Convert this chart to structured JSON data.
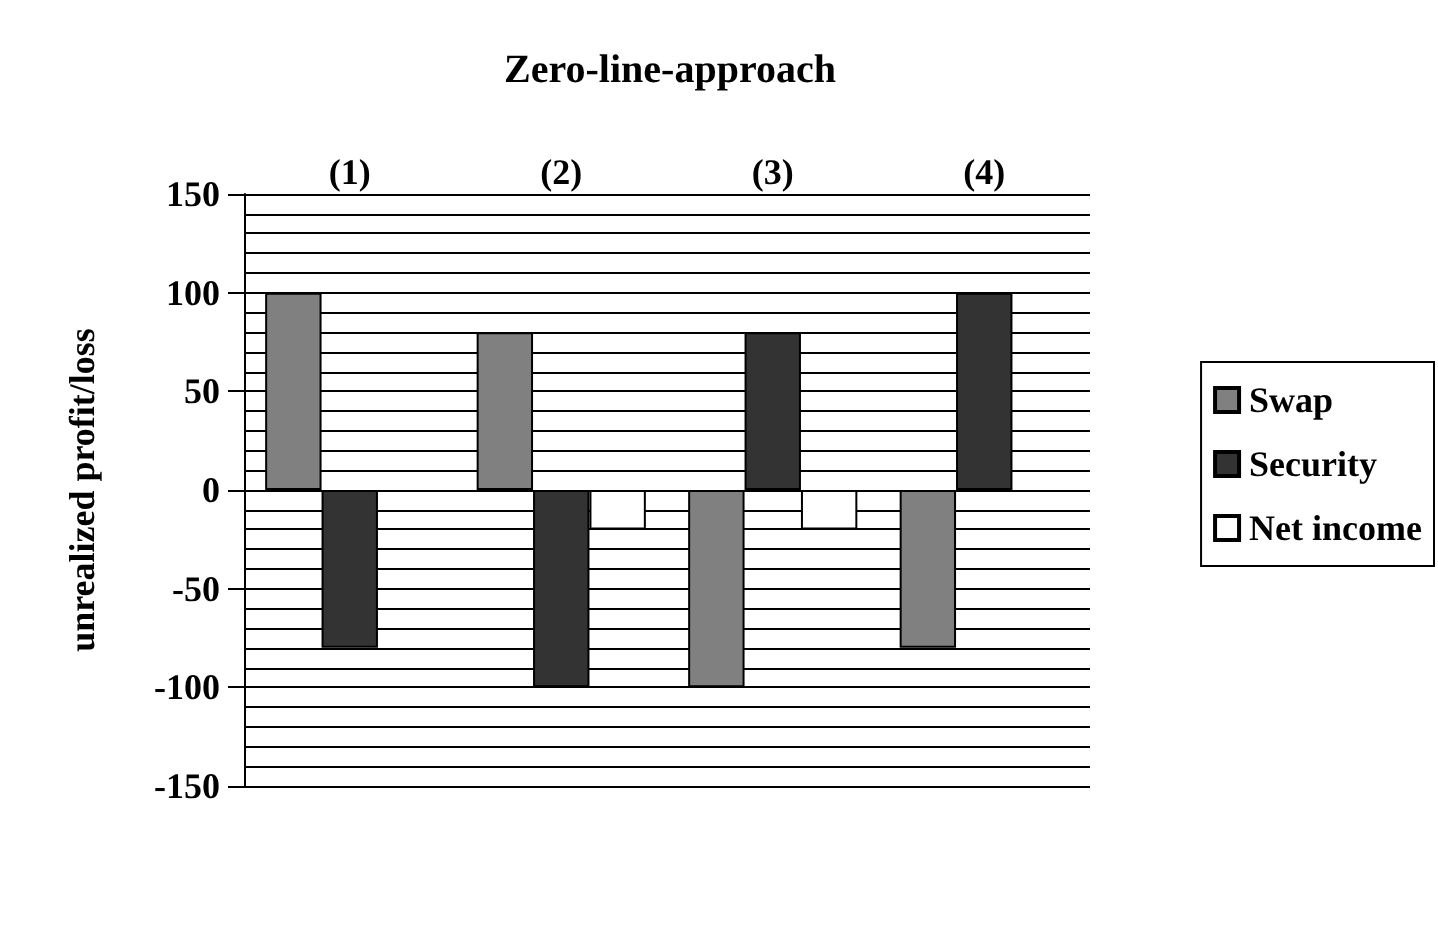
{
  "chart_data": {
    "type": "bar",
    "title": "Zero-line-approach",
    "ylabel": "unrealized profit/loss",
    "categories": [
      "(1)",
      "(2)",
      "(3)",
      "(4)"
    ],
    "series": [
      {
        "name": "Swap",
        "color": "#808080",
        "values": [
          100,
          80,
          -100,
          -80
        ]
      },
      {
        "name": "Security",
        "color": "#333333",
        "values": [
          -80,
          -100,
          80,
          100
        ]
      },
      {
        "name": "Net income",
        "color": "#ffffff",
        "values": [
          null,
          -20,
          -20,
          null
        ]
      }
    ],
    "ylim": [
      -150,
      150
    ],
    "yticks": [
      -150,
      {
        "value": -140,
        "label": null
      },
      {
        "value": -130,
        "label": null
      },
      {
        "value": -120,
        "label": null
      },
      {
        "value": -110,
        "label": null
      },
      -100,
      {
        "value": -90,
        "label": null
      },
      {
        "value": -80,
        "label": null
      },
      {
        "value": -70,
        "label": null
      },
      {
        "value": -60,
        "label": null
      },
      -50,
      {
        "value": -40,
        "label": null
      },
      {
        "value": -30,
        "label": null
      },
      {
        "value": -20,
        "label": null
      },
      {
        "value": -10,
        "label": null
      },
      0,
      {
        "value": 10,
        "label": null
      },
      {
        "value": 20,
        "label": null
      },
      {
        "value": 30,
        "label": null
      },
      {
        "value": 40,
        "label": null
      },
      50,
      {
        "value": 60,
        "label": null
      },
      {
        "value": 70,
        "label": null
      },
      {
        "value": 80,
        "label": null
      },
      {
        "value": 90,
        "label": null
      },
      100,
      {
        "value": 110,
        "label": null
      },
      {
        "value": 120,
        "label": null
      },
      {
        "value": 130,
        "label": null
      },
      {
        "value": 140,
        "label": null
      },
      150
    ],
    "grid": "y",
    "legend": "right"
  }
}
